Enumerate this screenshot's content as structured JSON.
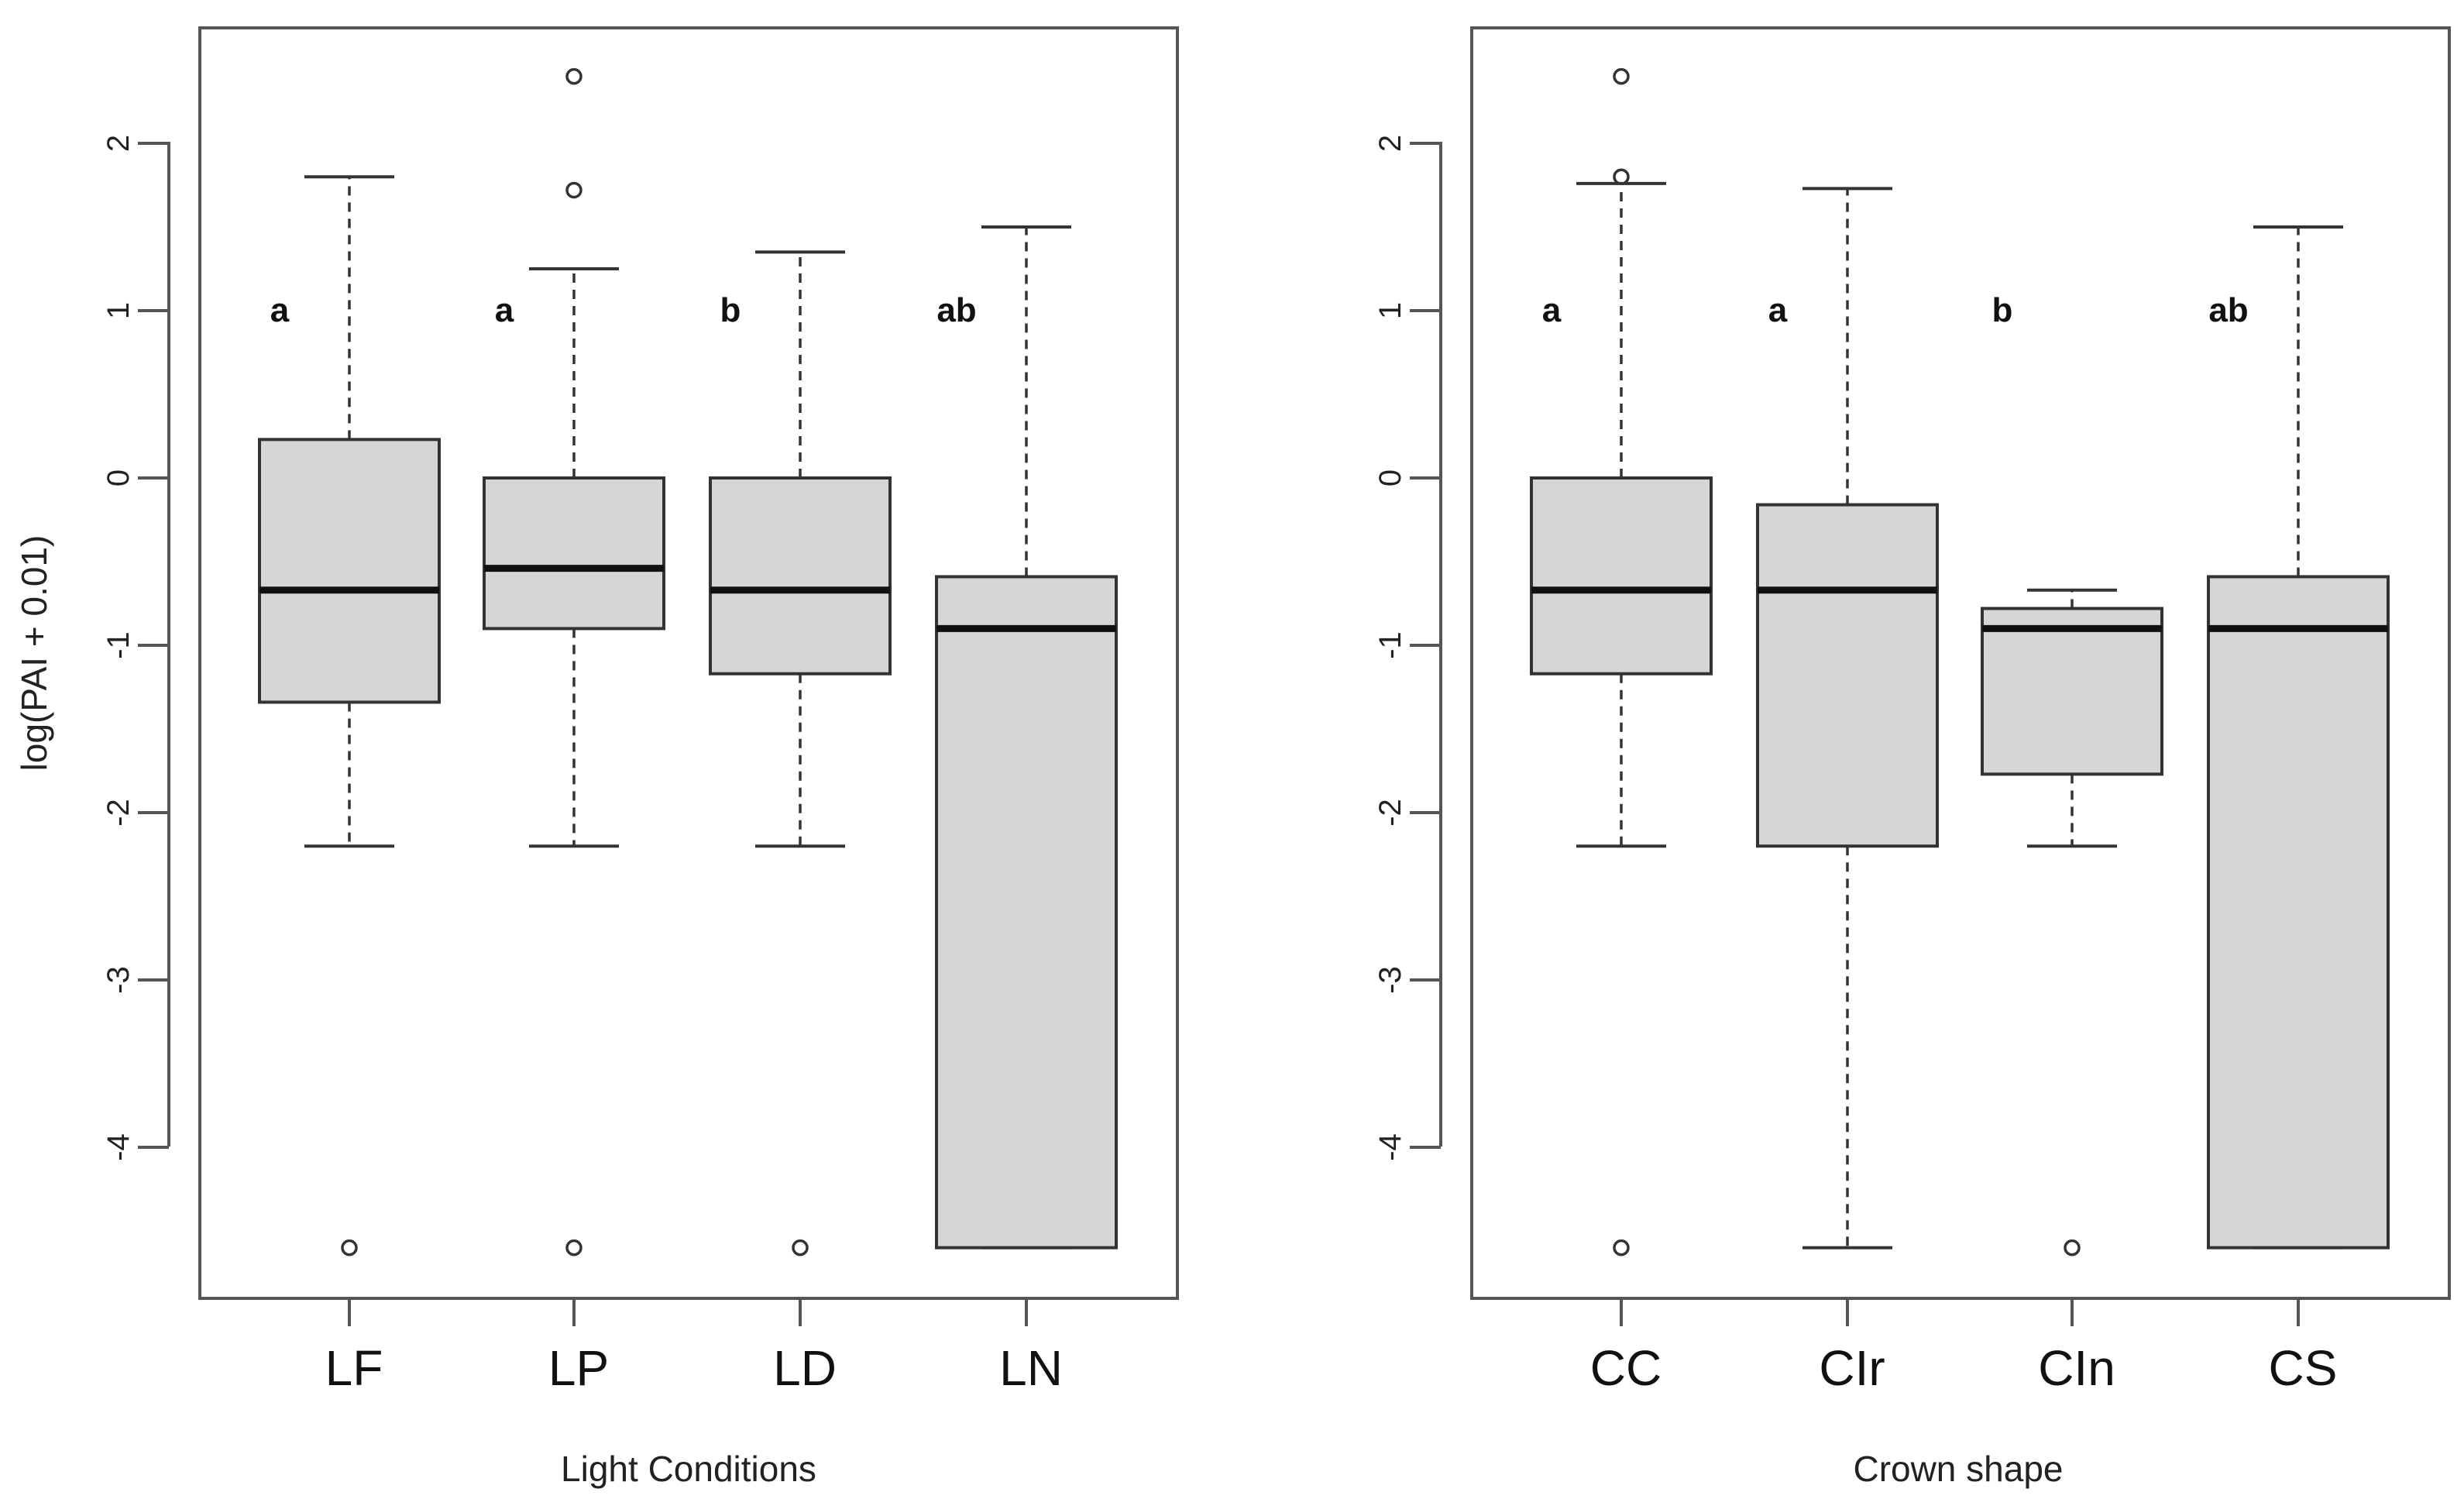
{
  "colors": {
    "box_fill": "#d6d6d6",
    "lines": "#333333",
    "background": "#ffffff"
  },
  "chart_data": [
    {
      "type": "boxplot",
      "title": "",
      "xlabel": "Light Conditions",
      "ylabel": "log(PAI + 0.01)",
      "ylim": [
        -4.8,
        2.8
      ],
      "yticks": [
        -4,
        -3,
        -2,
        -1,
        0,
        1,
        2
      ],
      "categories": [
        "LF",
        "LP",
        "LD",
        "LN"
      ],
      "boxes": [
        {
          "label": "LF",
          "whisker_low": -2.2,
          "q1": -1.34,
          "median": -0.67,
          "q3": 0.23,
          "whisker_high": 1.8,
          "outliers": [
            -4.6
          ],
          "letter": "a"
        },
        {
          "label": "LP",
          "whisker_low": -2.2,
          "q1": -0.9,
          "median": -0.54,
          "q3": 0.0,
          "whisker_high": 1.25,
          "outliers": [
            2.4,
            1.72,
            -4.6
          ],
          "letter": "a"
        },
        {
          "label": "LD",
          "whisker_low": -2.2,
          "q1": -1.17,
          "median": -0.67,
          "q3": 0.0,
          "whisker_high": 1.35,
          "outliers": [
            -4.6
          ],
          "letter": "b"
        },
        {
          "label": "LN",
          "whisker_low": -4.6,
          "q1": -4.6,
          "median": -0.9,
          "q3": -0.59,
          "whisker_high": 1.5,
          "outliers": [],
          "letter": "ab"
        }
      ]
    },
    {
      "type": "boxplot",
      "title": "",
      "xlabel": "Crown shape",
      "ylabel": "",
      "ylim": [
        -4.8,
        2.8
      ],
      "yticks": [
        -4,
        -3,
        -2,
        -1,
        0,
        1,
        2
      ],
      "categories": [
        "CC",
        "CIr",
        "CIn",
        "CS"
      ],
      "boxes": [
        {
          "label": "CC",
          "whisker_low": -2.2,
          "q1": -1.17,
          "median": -0.67,
          "q3": 0.0,
          "whisker_high": 1.76,
          "outliers": [
            2.4,
            1.8,
            -4.6
          ],
          "letter": "a"
        },
        {
          "label": "CIr",
          "whisker_low": -4.6,
          "q1": -2.2,
          "median": -0.67,
          "q3": -0.16,
          "whisker_high": 1.73,
          "outliers": [],
          "letter": "a"
        },
        {
          "label": "CIn",
          "whisker_low": -2.2,
          "q1": -1.77,
          "median": -0.9,
          "q3": -0.78,
          "whisker_high": -0.67,
          "outliers": [
            -4.6
          ],
          "letter": "b"
        },
        {
          "label": "CS",
          "whisker_low": -4.6,
          "q1": -4.6,
          "median": -0.9,
          "q3": -0.59,
          "whisker_high": 1.5,
          "outliers": [],
          "letter": "ab"
        }
      ]
    }
  ]
}
